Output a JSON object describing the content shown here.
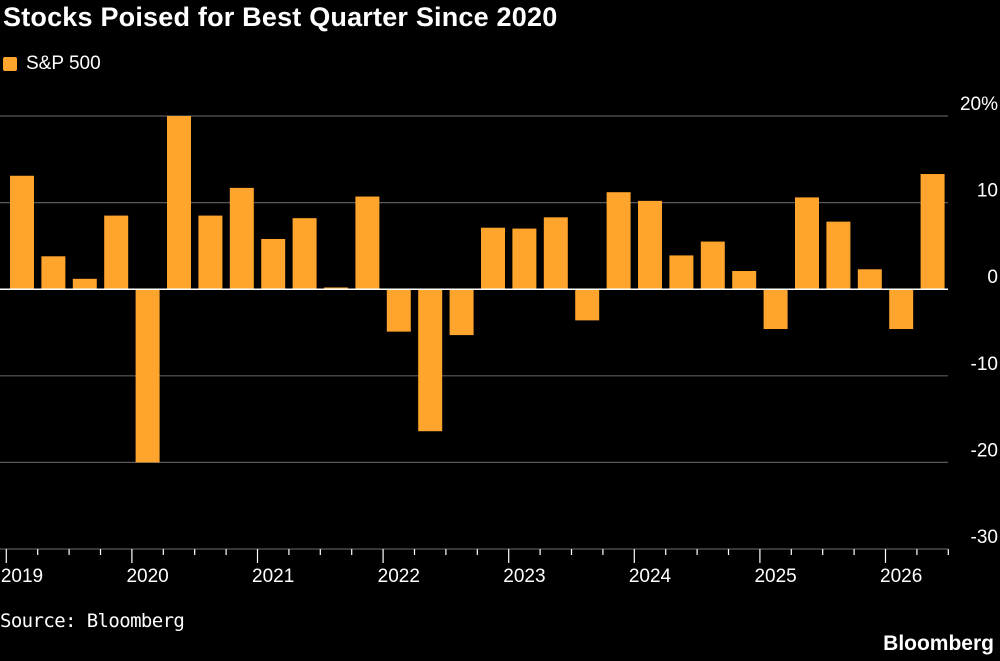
{
  "title": "Stocks Poised for Best Quarter Since 2020",
  "legend": {
    "label": "S&P 500"
  },
  "source": "Source: Bloomberg",
  "brand": "Bloomberg",
  "colors": {
    "bar": "#ffa42c",
    "grid": "#5a5a5a",
    "zero": "#ffffff",
    "background": "#000000"
  },
  "chart_data": {
    "type": "bar",
    "series": [
      {
        "name": "S&P 500",
        "x": [
          "2019 Q1",
          "2019 Q2",
          "2019 Q3",
          "2019 Q4",
          "2020 Q1",
          "2020 Q2",
          "2020 Q3",
          "2020 Q4",
          "2021 Q1",
          "2021 Q2",
          "2021 Q3",
          "2021 Q4",
          "2022 Q1",
          "2022 Q2",
          "2022 Q3",
          "2022 Q4",
          "2023 Q1",
          "2023 Q2",
          "2023 Q3",
          "2023 Q4",
          "2024 Q1",
          "2024 Q2",
          "2024 Q3",
          "2024 Q4",
          "2025 Q1",
          "2025 Q2",
          "2025 Q3",
          "2025 Q4",
          "2026 Q1",
          "2026 Q2"
        ],
        "values": [
          13.1,
          3.8,
          1.2,
          8.5,
          -20.0,
          20.0,
          8.5,
          11.7,
          5.8,
          8.2,
          0.2,
          10.7,
          -4.9,
          -16.4,
          -5.3,
          7.1,
          7.0,
          8.3,
          -3.6,
          11.2,
          10.2,
          3.9,
          5.5,
          2.1,
          -4.6,
          10.6,
          7.8,
          2.3,
          -4.6,
          13.3
        ]
      }
    ],
    "x_tick_labels": [
      "2019",
      "2020",
      "2021",
      "2022",
      "2023",
      "2024",
      "2025",
      "2026"
    ],
    "y_ticks": [
      20,
      10,
      0,
      -10,
      -20,
      -30
    ],
    "y_tick_labels": [
      "20%",
      "10",
      "0",
      "-10",
      "-20",
      "-30"
    ],
    "ylim": [
      -30,
      20
    ],
    "grid": true,
    "y_axis_side": "right",
    "legend_position": "top-left",
    "xlabel": "",
    "ylabel": ""
  }
}
